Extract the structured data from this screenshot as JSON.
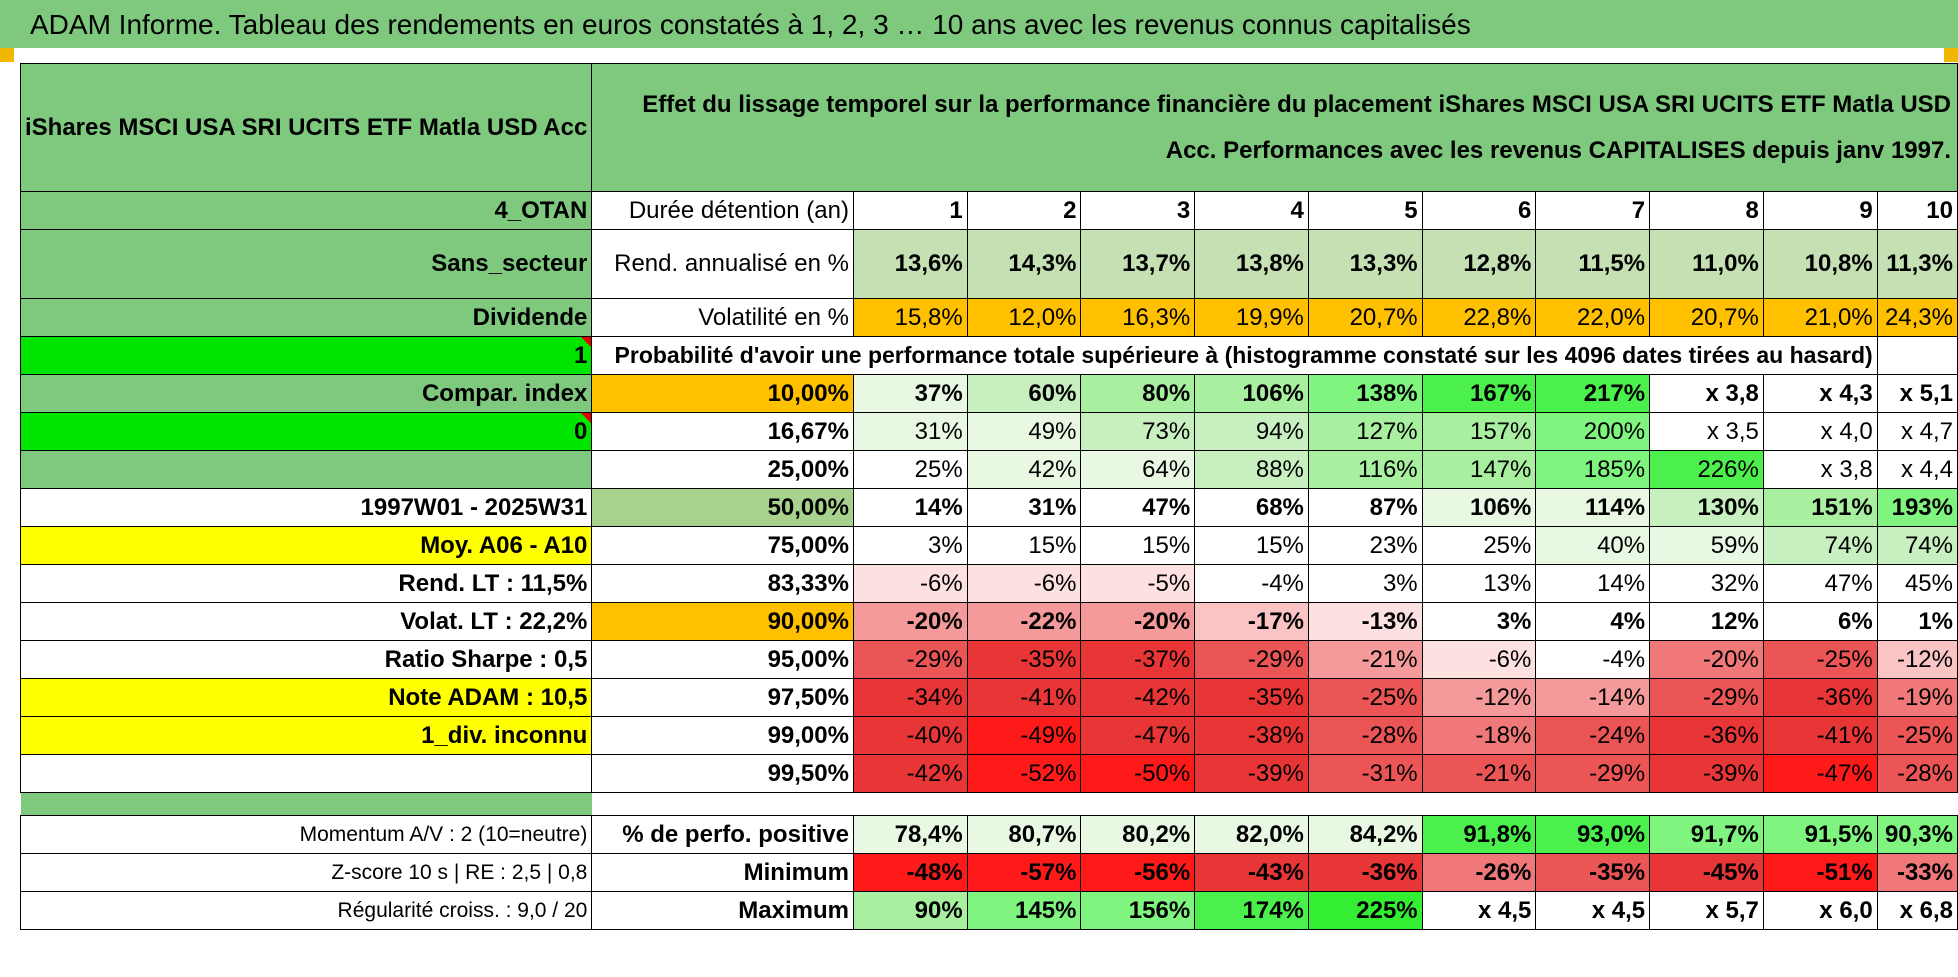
{
  "banner": {
    "title": "ADAM Informe. Tableau des rendements en euros constatés à 1, 2, 3 … 10 ans avec les revenus connus capitalisés"
  },
  "header": {
    "fund": "iShares MSCI USA SRI UCITS ETF Matla USD Acc",
    "description": "Effet du lissage temporel sur la performance financière du placement iShares MSCI USA SRI UCITS ETF Matla USD Acc. Performances avec les revenus CAPITALISES depuis janv 1997."
  },
  "rows": [
    {
      "side": "4_OTAN",
      "label": "Durée détention (an)",
      "values": [
        "1",
        "2",
        "3",
        "4",
        "5",
        "6",
        "7",
        "8",
        "9",
        "10"
      ]
    },
    {
      "side": "Sans_secteur",
      "label": "Rend. annualisé en %",
      "values": [
        "13,6%",
        "14,3%",
        "13,7%",
        "13,8%",
        "13,3%",
        "12,8%",
        "11,5%",
        "11,0%",
        "10,8%",
        "11,3%"
      ]
    },
    {
      "side": "Dividende",
      "label": "Volatilité en %",
      "values": [
        "15,8%",
        "12,0%",
        "16,3%",
        "19,9%",
        "20,7%",
        "22,8%",
        "22,0%",
        "20,7%",
        "21,0%",
        "24,3%"
      ]
    },
    {
      "side": "1",
      "label": "Probabilité d'avoir une performance totale supérieure à (histogramme constaté sur les 4096 dates tirées au hasard)",
      "values": []
    },
    {
      "side": "Compar. index",
      "label": "10,00%",
      "values": [
        "37%",
        "60%",
        "80%",
        "106%",
        "138%",
        "167%",
        "217%",
        "x 3,8",
        "x 4,3",
        "x 5,1"
      ]
    },
    {
      "side": "0",
      "label": "16,67%",
      "values": [
        "31%",
        "49%",
        "73%",
        "94%",
        "127%",
        "157%",
        "200%",
        "x 3,5",
        "x 4,0",
        "x 4,7"
      ]
    },
    {
      "side": "",
      "label": "25,00%",
      "values": [
        "25%",
        "42%",
        "64%",
        "88%",
        "116%",
        "147%",
        "185%",
        "226%",
        "x 3,8",
        "x 4,4"
      ]
    },
    {
      "side": "1997W01 - 2025W31",
      "label": "50,00%",
      "values": [
        "14%",
        "31%",
        "47%",
        "68%",
        "87%",
        "106%",
        "114%",
        "130%",
        "151%",
        "193%"
      ]
    },
    {
      "side": "Moy. A06 - A10",
      "label": "75,00%",
      "values": [
        "3%",
        "15%",
        "15%",
        "15%",
        "23%",
        "25%",
        "40%",
        "59%",
        "74%",
        "74%"
      ]
    },
    {
      "side": "Rend. LT :    11,5%",
      "label": "83,33%",
      "values": [
        "-6%",
        "-6%",
        "-5%",
        "-4%",
        "3%",
        "13%",
        "14%",
        "32%",
        "47%",
        "45%"
      ]
    },
    {
      "side": "Volat. LT :    22,2%",
      "label": "90,00%",
      "values": [
        "-20%",
        "-22%",
        "-20%",
        "-17%",
        "-13%",
        "3%",
        "4%",
        "12%",
        "6%",
        "1%"
      ]
    },
    {
      "side": "Ratio Sharpe :     0,5",
      "label": "95,00%",
      "values": [
        "-29%",
        "-35%",
        "-37%",
        "-29%",
        "-21%",
        "-6%",
        "-4%",
        "-20%",
        "-25%",
        "-12%"
      ]
    },
    {
      "side": "Note ADAM : 10,5",
      "label": "97,50%",
      "values": [
        "-34%",
        "-41%",
        "-42%",
        "-35%",
        "-25%",
        "-12%",
        "-14%",
        "-29%",
        "-36%",
        "-19%"
      ]
    },
    {
      "side": "1_div. inconnu",
      "label": "99,00%",
      "values": [
        "-40%",
        "-49%",
        "-47%",
        "-38%",
        "-28%",
        "-18%",
        "-24%",
        "-36%",
        "-41%",
        "-25%"
      ]
    },
    {
      "side": "",
      "label": "99,50%",
      "values": [
        "-42%",
        "-52%",
        "-50%",
        "-39%",
        "-31%",
        "-21%",
        "-29%",
        "-39%",
        "-47%",
        "-28%"
      ]
    },
    {
      "side": "Momentum A/V : 2 (10=neutre)",
      "label": "% de perfo. positive",
      "values": [
        "78,4%",
        "80,7%",
        "80,2%",
        "82,0%",
        "84,2%",
        "91,8%",
        "93,0%",
        "91,7%",
        "91,5%",
        "90,3%"
      ]
    },
    {
      "side": "Z-score 10 s | RE : 2,5 | 0,8",
      "label": "Minimum",
      "values": [
        "-48%",
        "-57%",
        "-56%",
        "-43%",
        "-36%",
        "-26%",
        "-35%",
        "-45%",
        "-51%",
        "-33%"
      ]
    },
    {
      "side": "Régularité croiss. : 9,0 / 20",
      "label": "Maximum",
      "values": [
        "90%",
        "145%",
        "156%",
        "174%",
        "225%",
        "x 4,5",
        "x 4,5",
        "x 5,7",
        "x 6,0",
        "x 6,8"
      ]
    }
  ],
  "colors": {
    "header_green": "#7fc97f",
    "bright_green": "#00e600",
    "yellow": "#ffff00",
    "orange": "#ffc000",
    "dark_red_text": "#e00000"
  }
}
